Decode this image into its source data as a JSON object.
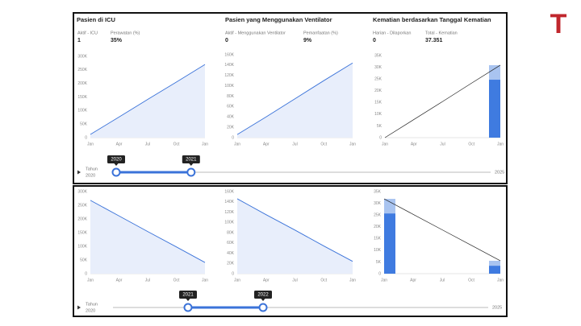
{
  "logo": "T",
  "kpis": [
    [
      {
        "label": "Aktif - ICU",
        "value": "1"
      },
      {
        "label": "Perawatan (%)",
        "value": "35%"
      }
    ],
    [
      {
        "label": "Aktif - Menggunakan Ventilator",
        "value": "0"
      },
      {
        "label": "Pemanfaatan (%)",
        "value": "9%"
      }
    ],
    [
      {
        "label": "Harian - Dilaporkan",
        "value": "0"
      },
      {
        "label": "Total - Kematian",
        "value": "37.351"
      }
    ]
  ],
  "sliders": [
    {
      "label": "Tahun",
      "min": 2020,
      "max": 2025,
      "range": [
        2020,
        2021
      ]
    },
    {
      "label": "Tahun",
      "min": 2020,
      "max": 2025,
      "range": [
        2021,
        2022
      ]
    }
  ],
  "chart_data": [
    {
      "type": "line",
      "title": "Pasien di ICU",
      "area": true,
      "categories": [
        "Jan",
        "Apr",
        "Jul",
        "Oct",
        "Jan"
      ],
      "series": [
        {
          "color": "#3b73d9",
          "values": [
            12000,
            76000,
            141000,
            205000,
            270000
          ]
        }
      ],
      "ylim": [
        0,
        300000
      ],
      "yticks": [
        0,
        {
          "value": 50000,
          "label": "50K"
        },
        {
          "value": 100000,
          "label": "100K"
        },
        {
          "value": 150000,
          "label": "150K"
        },
        {
          "value": 200000,
          "label": "200K"
        },
        {
          "value": 250000,
          "label": "250K"
        },
        {
          "value": 300000,
          "label": "300K"
        }
      ]
    },
    {
      "type": "line",
      "title": "Pasien yang Menggunakan Ventilator",
      "area": true,
      "categories": [
        "Jan",
        "Apr",
        "Jul",
        "Oct",
        "Jan"
      ],
      "series": [
        {
          "color": "#3b73d9",
          "values": [
            6000,
            40000,
            75000,
            110000,
            144000
          ]
        }
      ],
      "ylim": [
        0,
        160000
      ],
      "yticks": [
        0,
        {
          "value": 20000,
          "label": "20K"
        },
        {
          "value": 40000,
          "label": "40K"
        },
        {
          "value": 60000,
          "label": "60K"
        },
        {
          "value": 80000,
          "label": "80K"
        },
        {
          "value": 100000,
          "label": "100K"
        },
        {
          "value": 120000,
          "label": "120K"
        },
        {
          "value": 140000,
          "label": "140K"
        },
        {
          "value": 160000,
          "label": "160K"
        }
      ]
    },
    {
      "type": "combo",
      "title": "Kematian berdasarkan Tanggal Kematian",
      "categories": [
        "Jan",
        "Apr",
        "Jul",
        "Oct",
        "Jan"
      ],
      "series": [
        {
          "kind": "bar",
          "color": "#3f7be0",
          "values": [
            null,
            null,
            null,
            null,
            24700
          ]
        },
        {
          "kind": "bar",
          "color": "#a9c4f0",
          "values": [
            null,
            null,
            null,
            null,
            6200
          ]
        },
        {
          "kind": "line",
          "color": "#222222",
          "values": [
            0,
            7700,
            15400,
            23200,
            30900
          ]
        }
      ],
      "ylim": [
        0,
        35000
      ],
      "yticks": [
        0,
        {
          "value": 5000,
          "label": "5K"
        },
        {
          "value": 10000,
          "label": "10K"
        },
        {
          "value": 15000,
          "label": "15K"
        },
        {
          "value": 20000,
          "label": "20K"
        },
        {
          "value": 25000,
          "label": "25K"
        },
        {
          "value": 30000,
          "label": "30K"
        },
        {
          "value": 35000,
          "label": "35K"
        }
      ]
    },
    {
      "type": "line",
      "area": true,
      "categories": [
        "Jan",
        "Apr",
        "Jul",
        "Oct",
        "Jan"
      ],
      "series": [
        {
          "color": "#3b73d9",
          "values": [
            268000,
            211000,
            154000,
            98000,
            41000
          ]
        }
      ],
      "ylim": [
        0,
        300000
      ],
      "yticks": [
        0,
        {
          "value": 50000,
          "label": "50K"
        },
        {
          "value": 100000,
          "label": "100K"
        },
        {
          "value": 150000,
          "label": "150K"
        },
        {
          "value": 200000,
          "label": "200K"
        },
        {
          "value": 250000,
          "label": "250K"
        },
        {
          "value": 300000,
          "label": "300K"
        }
      ]
    },
    {
      "type": "line",
      "area": true,
      "categories": [
        "Jan",
        "Apr",
        "Jul",
        "Oct",
        "Jan"
      ],
      "series": [
        {
          "color": "#3b73d9",
          "values": [
            146000,
            115000,
            85000,
            54000,
            24000
          ]
        }
      ],
      "ylim": [
        0,
        160000
      ],
      "yticks": [
        0,
        {
          "value": 20000,
          "label": "20K"
        },
        {
          "value": 40000,
          "label": "40K"
        },
        {
          "value": 60000,
          "label": "60K"
        },
        {
          "value": 80000,
          "label": "80K"
        },
        {
          "value": 100000,
          "label": "100K"
        },
        {
          "value": 120000,
          "label": "120K"
        },
        {
          "value": 140000,
          "label": "140K"
        },
        {
          "value": 160000,
          "label": "160K"
        }
      ]
    },
    {
      "type": "combo",
      "categories": [
        "Jan",
        "Apr",
        "Jul",
        "Oct",
        "Jan"
      ],
      "series": [
        {
          "kind": "bar",
          "color": "#3f7be0",
          "values": [
            25700,
            null,
            null,
            null,
            3400
          ]
        },
        {
          "kind": "bar",
          "color": "#a9c4f0",
          "values": [
            6200,
            null,
            null,
            null,
            2100
          ]
        },
        {
          "kind": "line",
          "color": "#222222",
          "values": [
            31900,
            25300,
            18700,
            12100,
            5500
          ]
        }
      ],
      "ylim": [
        0,
        35000
      ],
      "yticks": [
        0,
        {
          "value": 5000,
          "label": "5K"
        },
        {
          "value": 10000,
          "label": "10K"
        },
        {
          "value": 15000,
          "label": "15K"
        },
        {
          "value": 20000,
          "label": "20K"
        },
        {
          "value": 25000,
          "label": "25K"
        },
        {
          "value": 30000,
          "label": "30K"
        },
        {
          "value": 35000,
          "label": "35K"
        }
      ]
    }
  ]
}
